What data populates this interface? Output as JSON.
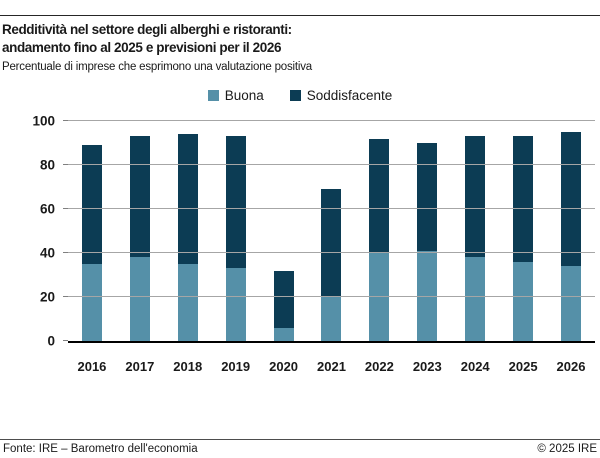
{
  "header": {
    "title_line1": "Redditività nel settore degli alberghi e ristoranti:",
    "title_line2": "andamento fino al 2025 e previsioni per il 2026",
    "subtitle": "Percentuale di imprese che esprimono una valutazione positiva"
  },
  "chart_data": {
    "type": "bar",
    "stacked": true,
    "title": "Redditività nel settore degli alberghi e ristoranti: andamento fino al 2025 e previsioni per il 2026",
    "subtitle": "Percentuale di imprese che esprimono una valutazione positiva",
    "categories": [
      "2016",
      "2017",
      "2018",
      "2019",
      "2020",
      "2021",
      "2022",
      "2023",
      "2024",
      "2025",
      "2026"
    ],
    "series": [
      {
        "name": "Buona",
        "color": "#5590a8",
        "values": [
          35,
          38,
          35,
          33,
          6,
          20,
          40,
          41,
          38,
          36,
          34
        ]
      },
      {
        "name": "Soddisfacente",
        "color": "#0c3c54",
        "values": [
          54,
          55,
          59,
          60,
          26,
          49,
          52,
          49,
          55,
          57,
          61
        ]
      }
    ],
    "totals": [
      89,
      93,
      94,
      93,
      32,
      69,
      92,
      90,
      93,
      93,
      95
    ],
    "xlabel": "",
    "ylabel": "",
    "ylim": [
      0,
      100
    ],
    "y_ticks": [
      0,
      20,
      40,
      60,
      80,
      100
    ],
    "grid": "horizontal",
    "gridline_color": "#a6a6a6",
    "axis_color": "#000000",
    "legend_position": "top-center"
  },
  "footer": {
    "source": "Fonte: IRE – Barometro dell'economia",
    "copyright": "© 2025 IRE"
  }
}
